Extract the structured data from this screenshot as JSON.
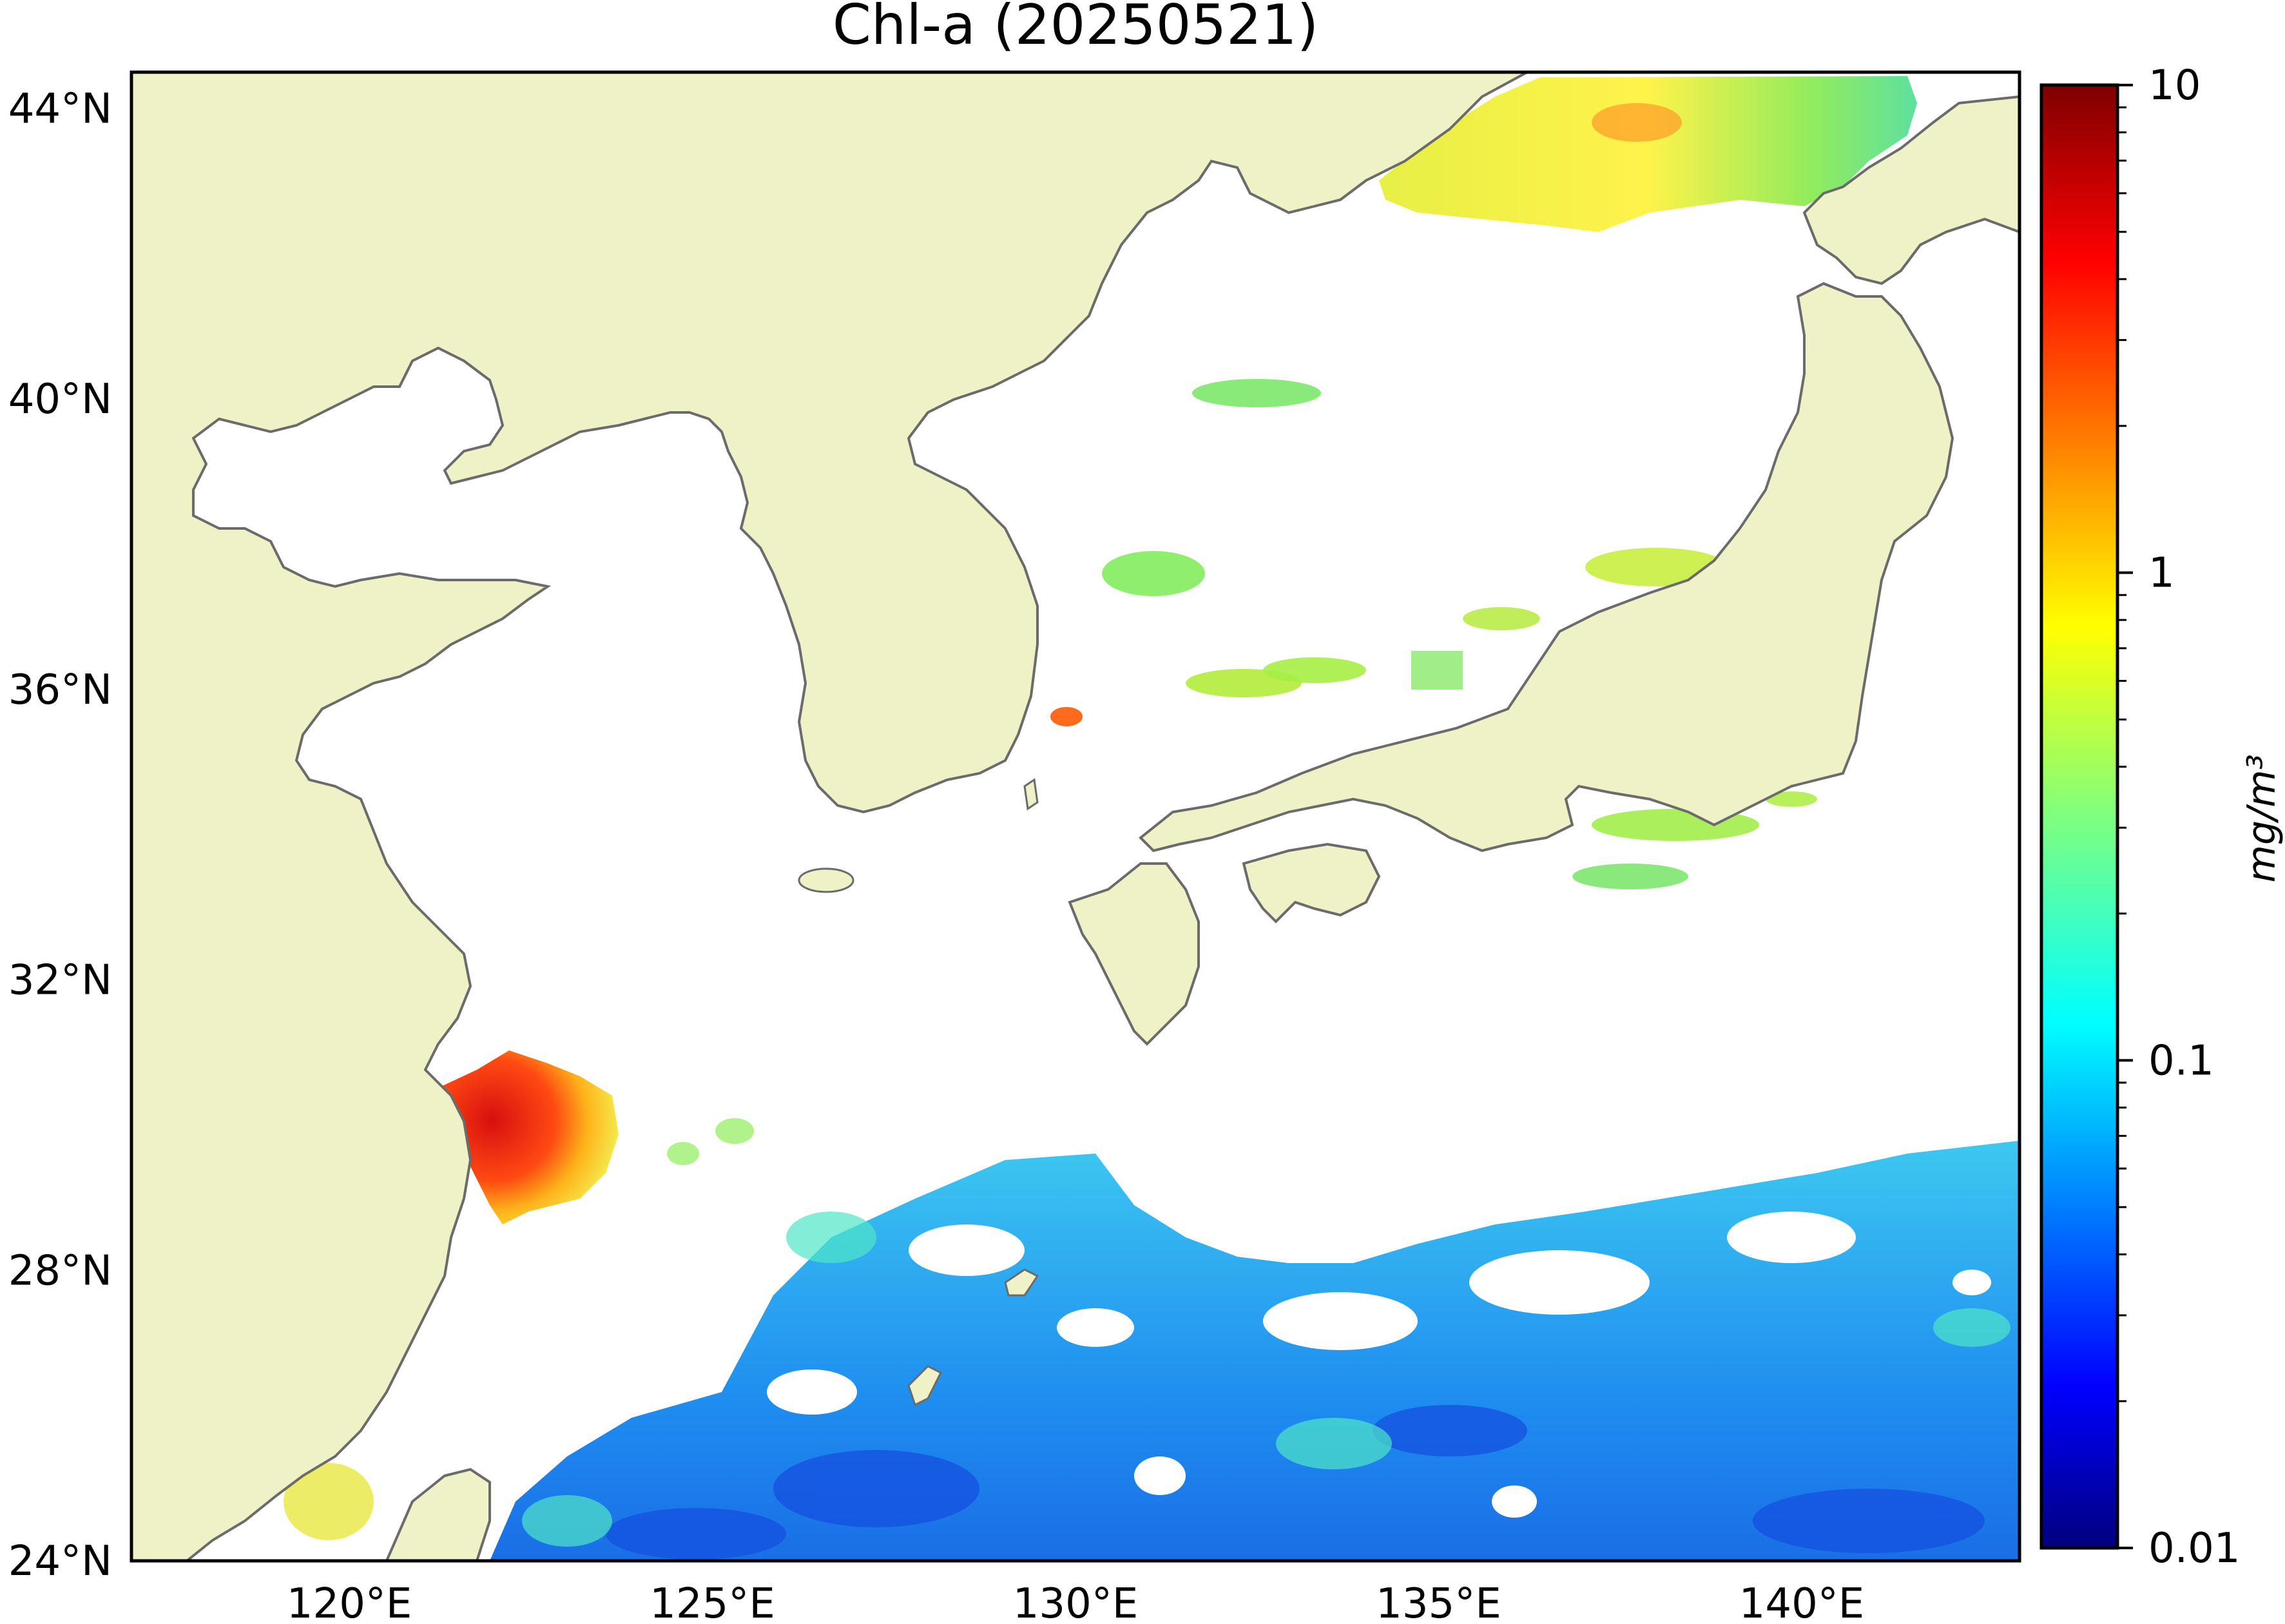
{
  "title": "Chl-a (20250521)",
  "map": {
    "region": {
      "lon_min": 117,
      "lon_max": 143,
      "lat_min": 24,
      "lat_max": 44.5
    },
    "land_color": "#eef2c6",
    "ocean_nodata_color": "#ffffff",
    "coastline_color": "#6b6b6b",
    "lat_ticks": [
      {
        "value": 44,
        "label": "44°N"
      },
      {
        "value": 40,
        "label": "40°N"
      },
      {
        "value": 36,
        "label": "36°N"
      },
      {
        "value": 32,
        "label": "32°N"
      },
      {
        "value": 28,
        "label": "28°N"
      },
      {
        "value": 24,
        "label": "24°N"
      }
    ],
    "lon_ticks": [
      {
        "value": 120,
        "label": "120°E"
      },
      {
        "value": 125,
        "label": "125°E"
      },
      {
        "value": 130,
        "label": "130°E"
      },
      {
        "value": 135,
        "label": "135°E"
      },
      {
        "value": 140,
        "label": "140°E"
      }
    ]
  },
  "colorbar": {
    "colormap": "jet",
    "scale": "log",
    "range": [
      0.01,
      10
    ],
    "ticks": [
      {
        "value": 10,
        "label": "10"
      },
      {
        "value": 1,
        "label": "1"
      },
      {
        "value": 0.1,
        "label": "0.1"
      },
      {
        "value": 0.01,
        "label": "0.01"
      }
    ],
    "units": "mg/m³",
    "colors": [
      "#00007f",
      "#0000ff",
      "#007fff",
      "#00ffff",
      "#7fff7f",
      "#ffff00",
      "#ff7f00",
      "#ff0000",
      "#7f0000"
    ]
  }
}
